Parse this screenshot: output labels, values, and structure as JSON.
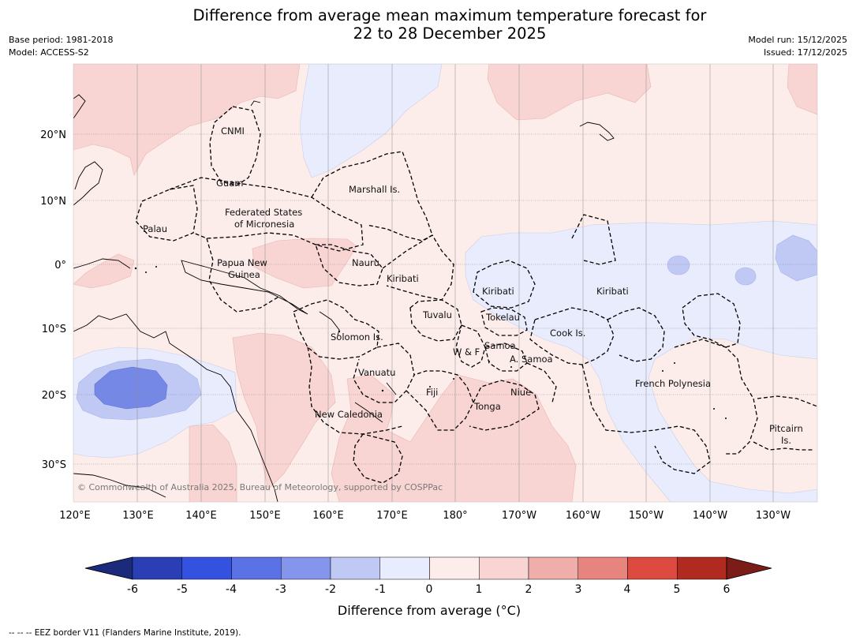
{
  "title": {
    "line1": "Difference from average mean maximum temperature forecast for",
    "line2": "22 to 28 December 2025"
  },
  "meta_left": {
    "base_period": "Base period: 1981-2018",
    "model": "Model: ACCESS-S2"
  },
  "meta_right": {
    "model_run": "Model run: 15/12/2025",
    "issued": "Issued: 17/12/2025"
  },
  "map": {
    "lat_labels": [
      "20°N",
      "10°N",
      "0°",
      "10°S",
      "20°S",
      "30°S"
    ],
    "lon_labels": [
      "120°E",
      "130°E",
      "140°E",
      "150°E",
      "160°E",
      "170°E",
      "180°",
      "170°W",
      "160°W",
      "150°W",
      "140°W",
      "130°W"
    ],
    "places": {
      "cnmi": "CNMI",
      "guam": "Guam",
      "marshall": "Marshall Is.",
      "fsm_1": "Federated States",
      "fsm_2": "of Micronesia",
      "palau": "Palau",
      "png_1": "Papua New",
      "png_2": "Guinea",
      "nauru": "Nauru",
      "kiribati_w": "Kiribati",
      "kiribati_c": "Kiribati",
      "kiribati_e": "Kiribati",
      "tuvalu": "Tuvalu",
      "tokelau": "Tokelau",
      "cook": "Cook Is.",
      "solomon": "Solomon Is.",
      "wf": "W & F",
      "samoa": "Samoa",
      "asamoa": "A. Samoa",
      "vanuatu": "Vanuatu",
      "fiji": "Fiji",
      "niue": "Niue",
      "tonga": "Tonga",
      "frenchpoly": "French Polynesia",
      "newcal": "New Caledonia",
      "pitcairn_1": "Pitcairn",
      "pitcairn_2": "Is."
    },
    "copyright": "© Commonwealth of Australia 2025, Bureau of Meteorology, supported by COSPPac"
  },
  "colorbar": {
    "title": "Difference from average (°C)",
    "ticks": [
      "-6",
      "-5",
      "-4",
      "-3",
      "-2",
      "-1",
      "0",
      "1",
      "2",
      "3",
      "4",
      "5",
      "6"
    ],
    "colors": [
      "#1c2a7c",
      "#2a3fb5",
      "#3452e0",
      "#5a72e6",
      "#8595ec",
      "#c0c8f4",
      "#e8ecfc",
      "#fcecea",
      "#f8d4d2",
      "#f0aeaa",
      "#e8847e",
      "#dc4a40",
      "#b02a20",
      "#7c1c18"
    ]
  },
  "footer": "--  --  -- EEZ border V11 (Flanders Marine Institute, 2019)."
}
